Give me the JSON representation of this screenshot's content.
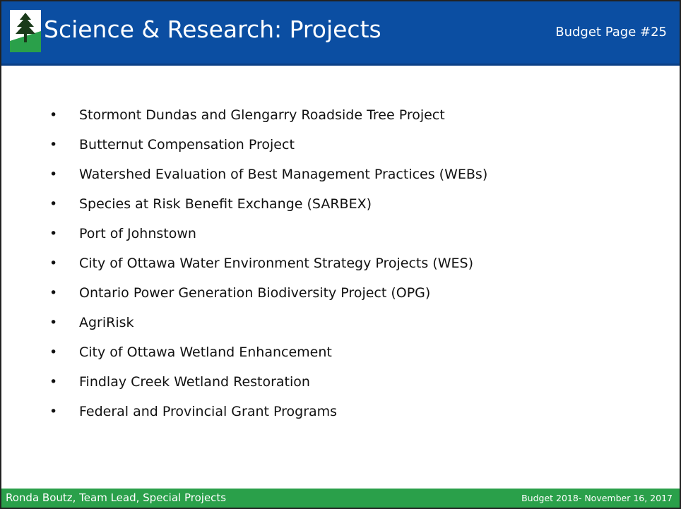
{
  "header": {
    "title": "Science & Research: Projects",
    "page_ref": "Budget Page #25"
  },
  "items": [
    "Stormont Dundas and Glengarry Roadside Tree Project",
    "Butternut Compensation Project",
    "Watershed Evaluation of Best Management Practices (WEBs)",
    "Species at Risk Benefit Exchange (SARBEX)",
    "Port of Johnstown",
    "City of Ottawa Water Environment Strategy Projects (WES)",
    "Ontario Power Generation Biodiversity Project (OPG)",
    "AgriRisk",
    "City of Ottawa Wetland Enhancement",
    "Findlay Creek Wetland Restoration",
    "Federal and Provincial Grant Programs"
  ],
  "footer": {
    "left": "Ronda Boutz, Team Lead, Special Projects",
    "right": "Budget 2018- November 16, 2017"
  }
}
